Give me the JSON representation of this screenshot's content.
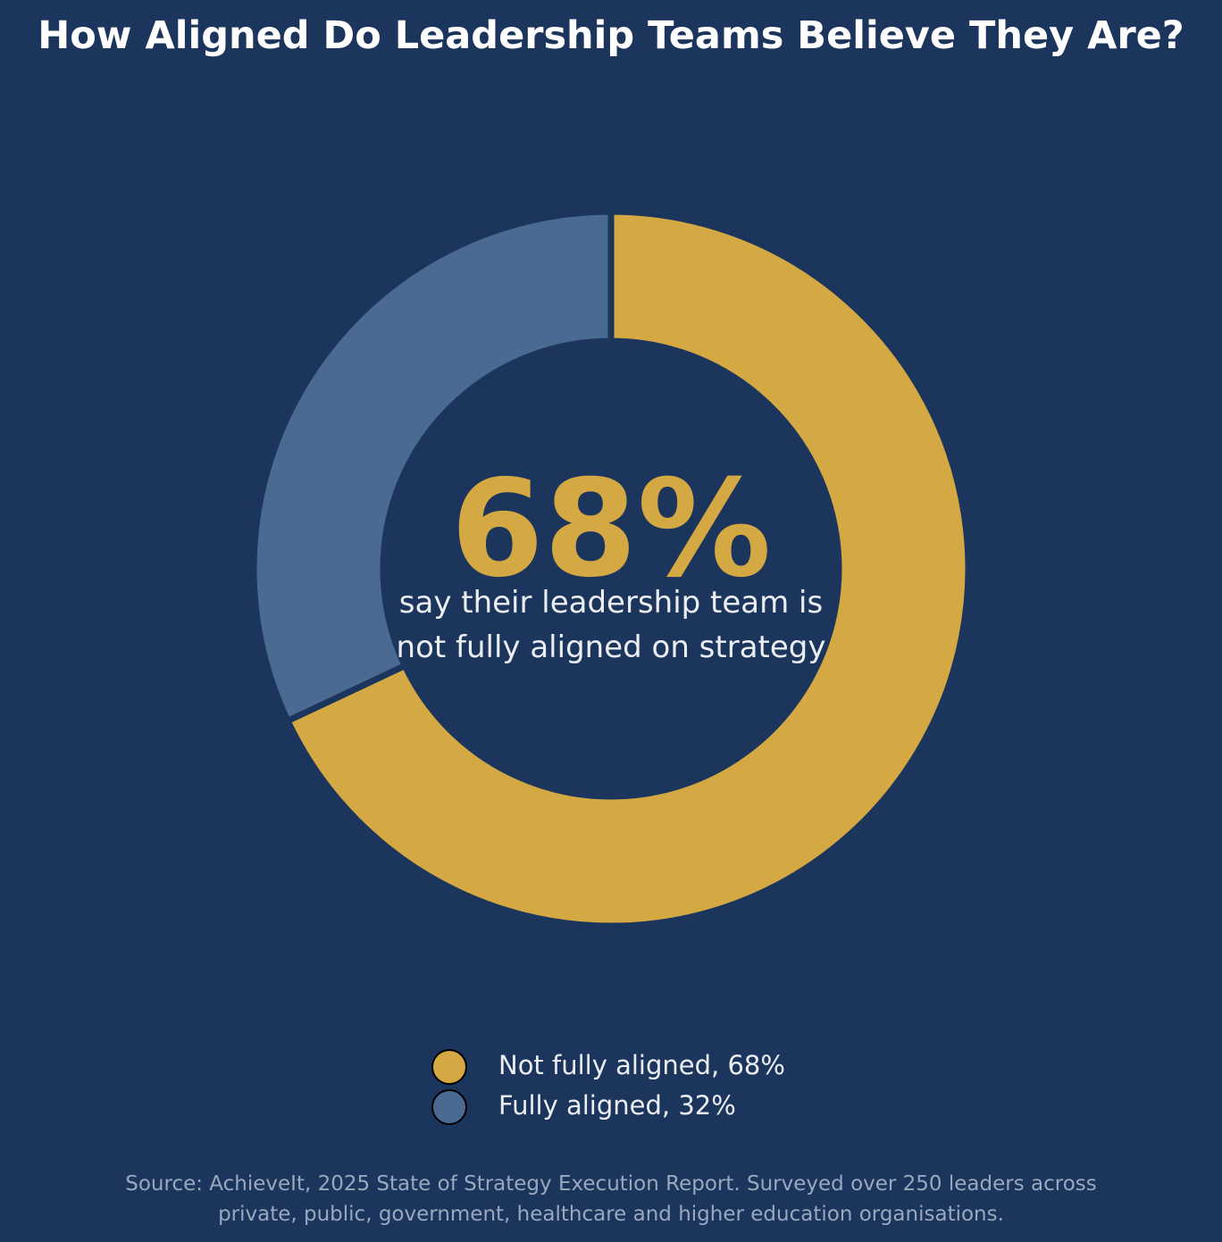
{
  "chart_data": {
    "type": "pie",
    "title": "How Aligned Do Leadership Teams Believe They Are?",
    "categories": [
      "Not fully aligned",
      "Fully aligned"
    ],
    "values": [
      68,
      32
    ],
    "unit": "%",
    "colors": [
      "#d4a843",
      "#4a6a91"
    ],
    "donut": true,
    "center_value": "68%",
    "center_caption": [
      "say their leadership team is",
      "not fully aligned on strategy"
    ],
    "legend": [
      {
        "label": "Not fully aligned, 68%",
        "color": "#d4a843"
      },
      {
        "label": "Fully aligned, 32%",
        "color": "#4a6a91"
      }
    ],
    "legend_position": "bottom-center",
    "source": [
      "Source: AchieveIt, 2025 State of Strategy Execution Report. Surveyed over 250 leaders across",
      "private, public, government, healthcare and higher education organisations."
    ]
  },
  "theme": {
    "background": "#1c355c"
  }
}
